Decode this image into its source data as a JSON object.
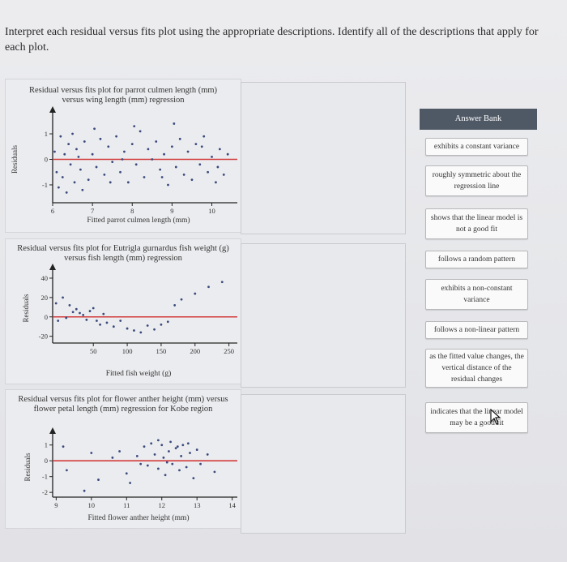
{
  "question": "Interpret each residual versus fits plot using the appropriate descriptions. Identify all of the descriptions that apply for each plot.",
  "answer_bank": {
    "header": "Answer Bank",
    "items": [
      "exhibits a constant variance",
      "roughly symmetric about the regression line",
      "shows that the linear model is not a good fit",
      "follows a random pattern",
      "exhibits a non-constant variance",
      "follows a non-linear pattern",
      "as the fitted value changes, the vertical distance of the residual changes",
      "indicates that the linear model may be a good fit"
    ]
  },
  "chart_data": [
    {
      "type": "scatter",
      "title": "Residual versus fits plot for parrot culmen length (mm) versus wing length (mm) regression",
      "xlabel": "Fitted parrot culmen length (mm)",
      "ylabel": "Residuals",
      "x_ticks": [
        "6",
        "7",
        "8",
        "9",
        "10"
      ],
      "y_ticks": [
        "1",
        "0",
        "-1"
      ],
      "xlim": [
        6,
        10.6
      ],
      "ylim": [
        -1.7,
        1.7
      ],
      "reference_line_y": 0,
      "reference_line_color": "#d33b3b",
      "point_color": "#3a4a7c",
      "points": [
        [
          6.05,
          0.3
        ],
        [
          6.1,
          -0.5
        ],
        [
          6.15,
          -1.1
        ],
        [
          6.2,
          0.9
        ],
        [
          6.25,
          -0.7
        ],
        [
          6.3,
          0.2
        ],
        [
          6.35,
          -1.3
        ],
        [
          6.4,
          0.6
        ],
        [
          6.45,
          -0.2
        ],
        [
          6.5,
          1.0
        ],
        [
          6.55,
          -0.9
        ],
        [
          6.6,
          0.4
        ],
        [
          6.7,
          -0.4
        ],
        [
          6.8,
          0.7
        ],
        [
          6.9,
          -0.8
        ],
        [
          7.0,
          0.2
        ],
        [
          7.1,
          -0.3
        ],
        [
          7.2,
          0.8
        ],
        [
          7.3,
          -0.6
        ],
        [
          7.4,
          0.5
        ],
        [
          7.5,
          -0.1
        ],
        [
          7.6,
          0.9
        ],
        [
          7.7,
          -0.5
        ],
        [
          7.8,
          0.3
        ],
        [
          7.9,
          -0.9
        ],
        [
          8.0,
          0.6
        ],
        [
          8.1,
          -0.2
        ],
        [
          8.2,
          1.1
        ],
        [
          8.3,
          -0.7
        ],
        [
          8.4,
          0.4
        ],
        [
          8.5,
          0.0
        ],
        [
          8.6,
          0.7
        ],
        [
          8.7,
          -0.4
        ],
        [
          8.8,
          0.2
        ],
        [
          8.9,
          -1.0
        ],
        [
          9.0,
          0.5
        ],
        [
          9.1,
          -0.3
        ],
        [
          9.2,
          0.8
        ],
        [
          9.3,
          -0.6
        ],
        [
          9.4,
          0.3
        ],
        [
          9.5,
          -0.8
        ],
        [
          9.6,
          0.6
        ],
        [
          9.7,
          -0.2
        ],
        [
          9.8,
          0.9
        ],
        [
          9.9,
          -0.5
        ],
        [
          10.0,
          0.1
        ],
        [
          10.1,
          -0.9
        ],
        [
          10.2,
          0.4
        ],
        [
          10.3,
          -0.6
        ],
        [
          10.4,
          0.2
        ],
        [
          8.05,
          1.3
        ],
        [
          7.05,
          1.2
        ],
        [
          9.05,
          1.4
        ],
        [
          6.75,
          -1.2
        ],
        [
          7.75,
          0.0
        ],
        [
          8.75,
          -0.7
        ],
        [
          9.75,
          0.5
        ],
        [
          10.15,
          -0.3
        ],
        [
          6.65,
          0.1
        ],
        [
          7.45,
          -0.9
        ]
      ]
    },
    {
      "type": "scatter",
      "title": "Residual versus fits plot for Eutrigla gurnardus fish weight (g) versus fish length (mm) regression",
      "xlabel": "Fitted fish weight (g)",
      "ylabel": "Residuals",
      "x_ticks": [
        "50",
        "100",
        "150",
        "200",
        "250"
      ],
      "y_ticks": [
        "40",
        "20",
        "0",
        "-20"
      ],
      "xlim": [
        -10,
        260
      ],
      "ylim": [
        -27,
        45
      ],
      "reference_line_y": 0,
      "reference_line_color": "#d33b3b",
      "point_color": "#3a4a7c",
      "points": [
        [
          -5,
          14
        ],
        [
          5,
          20
        ],
        [
          15,
          12
        ],
        [
          25,
          8
        ],
        [
          30,
          4
        ],
        [
          35,
          2
        ],
        [
          40,
          -3
        ],
        [
          45,
          6
        ],
        [
          50,
          9
        ],
        [
          55,
          -4
        ],
        [
          60,
          -8
        ],
        [
          65,
          3
        ],
        [
          70,
          -6
        ],
        [
          80,
          -10
        ],
        [
          90,
          -4
        ],
        [
          100,
          -12
        ],
        [
          110,
          -14
        ],
        [
          120,
          -16
        ],
        [
          130,
          -9
        ],
        [
          140,
          -13
        ],
        [
          150,
          -8
        ],
        [
          160,
          -5
        ],
        [
          170,
          12
        ],
        [
          180,
          18
        ],
        [
          200,
          24
        ],
        [
          220,
          31
        ],
        [
          240,
          36
        ],
        [
          -2,
          -4
        ],
        [
          10,
          -1
        ],
        [
          20,
          5
        ]
      ]
    },
    {
      "type": "scatter",
      "title": "Residual versus fits plot for flower anther height (mm) versus flower petal length (mm) regression for Kobe region",
      "xlabel": "Fitted flower anther height (mm)",
      "ylabel": "Residuals",
      "x_ticks": [
        "9",
        "10",
        "11",
        "12",
        "13",
        "14"
      ],
      "y_ticks": [
        "1",
        "0",
        "-1",
        "-2"
      ],
      "xlim": [
        8.9,
        14.1
      ],
      "ylim": [
        -2.3,
        1.5
      ],
      "reference_line_y": 0,
      "reference_line_color": "#d33b3b",
      "point_color": "#3a4a7c",
      "points": [
        [
          9.2,
          0.9
        ],
        [
          9.3,
          -0.6
        ],
        [
          9.8,
          -1.9
        ],
        [
          10.0,
          0.5
        ],
        [
          10.2,
          -1.2
        ],
        [
          10.6,
          0.2
        ],
        [
          10.8,
          0.6
        ],
        [
          11.0,
          -0.8
        ],
        [
          11.1,
          -1.4
        ],
        [
          11.3,
          0.3
        ],
        [
          11.5,
          0.9
        ],
        [
          11.6,
          -0.3
        ],
        [
          11.7,
          1.1
        ],
        [
          11.8,
          0.4
        ],
        [
          11.9,
          -0.5
        ],
        [
          12.0,
          1.0
        ],
        [
          12.05,
          0.2
        ],
        [
          12.1,
          -0.9
        ],
        [
          12.2,
          0.6
        ],
        [
          12.25,
          1.2
        ],
        [
          12.3,
          -0.2
        ],
        [
          12.4,
          0.8
        ],
        [
          12.5,
          -0.6
        ],
        [
          12.55,
          0.3
        ],
        [
          12.6,
          1.0
        ],
        [
          12.7,
          -0.4
        ],
        [
          12.8,
          0.5
        ],
        [
          12.9,
          -1.1
        ],
        [
          13.0,
          0.7
        ],
        [
          13.1,
          -0.2
        ],
        [
          13.3,
          0.4
        ],
        [
          13.5,
          -0.7
        ],
        [
          11.9,
          1.3
        ],
        [
          12.15,
          -0.1
        ],
        [
          12.45,
          0.9
        ],
        [
          11.4,
          -0.2
        ],
        [
          12.75,
          1.1
        ]
      ]
    }
  ]
}
